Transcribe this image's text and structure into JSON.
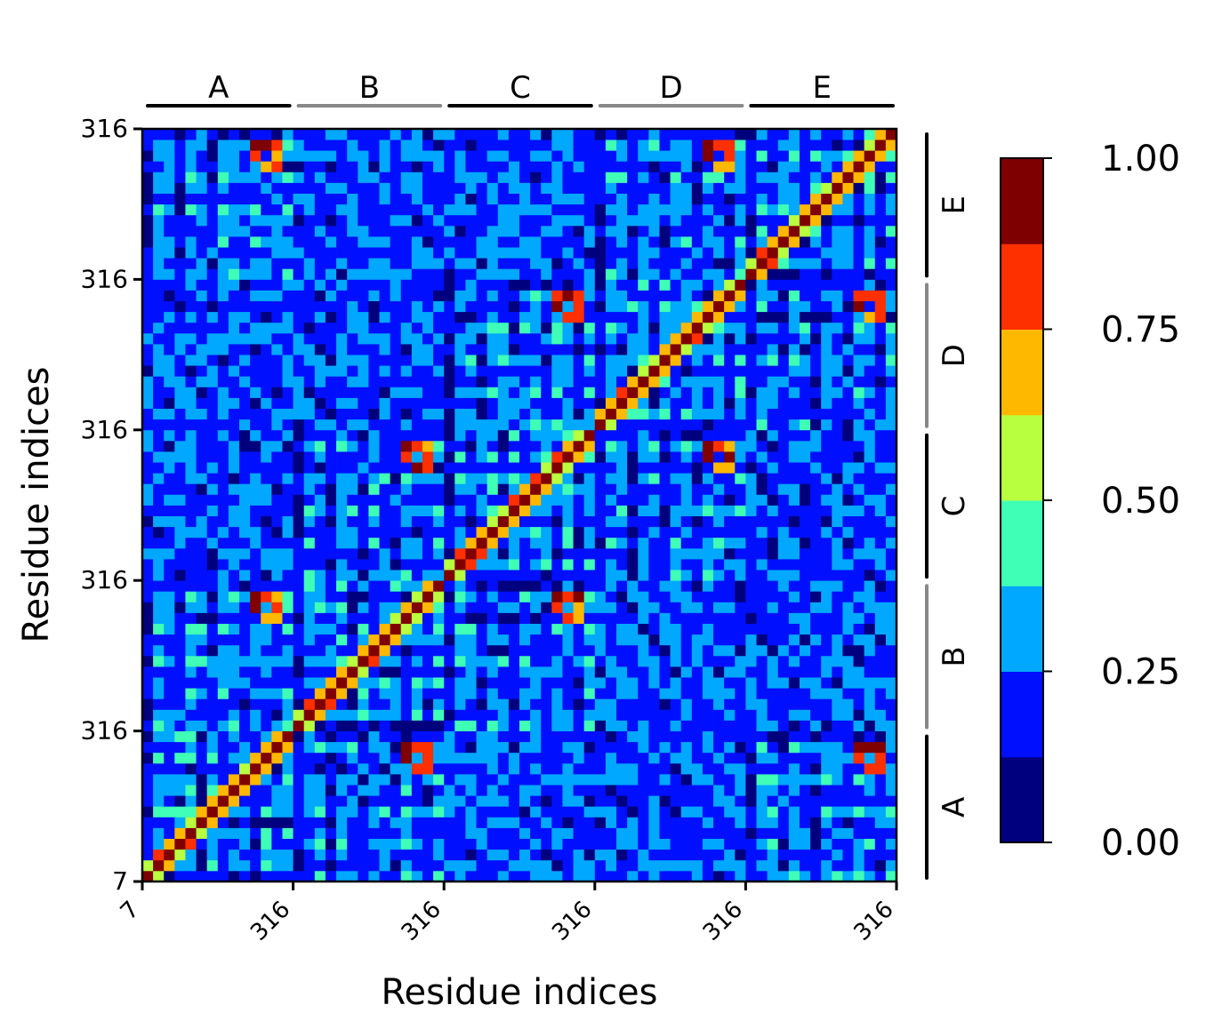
{
  "chart_data": {
    "type": "heatmap",
    "xlabel": "Residue indices",
    "ylabel": "Residue indices",
    "chains": [
      "A",
      "B",
      "C",
      "D",
      "E"
    ],
    "chain_bar_colors": [
      "#000000",
      "#888888",
      "#000000",
      "#888888",
      "#000000"
    ],
    "residue_range": [
      7,
      316
    ],
    "x_tick_labels": [
      "7",
      "316",
      "316",
      "316",
      "316",
      "316"
    ],
    "y_tick_labels": [
      "7",
      "316",
      "316",
      "316",
      "316",
      "316"
    ],
    "colorbar": {
      "min": 0.0,
      "max": 1.0,
      "tick_labels": [
        "0.00",
        "0.25",
        "0.50",
        "0.75",
        "1.00"
      ],
      "bins": 8,
      "colors": [
        "#00007f",
        "#0010ff",
        "#00a8ff",
        "#3fffb7",
        "#b7ff3f",
        "#ffb800",
        "#ff3000",
        "#7f0000"
      ]
    },
    "pattern": {
      "background": "#00007f",
      "description_values": {
        "diagonal_blocks": "high (up to 1.00) near diagonal within each chain",
        "adjacent_chains": "moderate off-diagonal features",
        "distant_chains": "mostly low (0.00-0.25)"
      }
    }
  }
}
